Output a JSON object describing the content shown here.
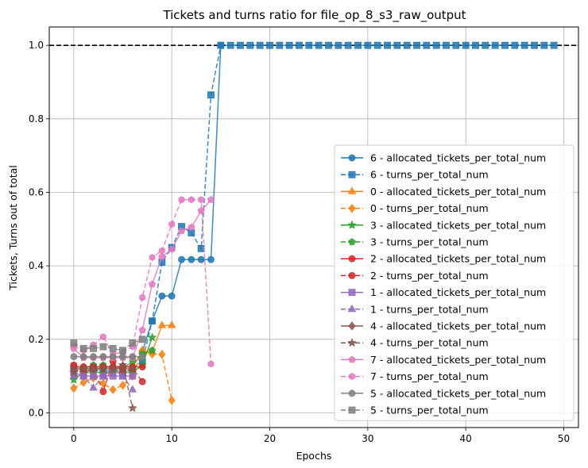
{
  "chart_data": {
    "type": "line",
    "title": "Tickets and turns ratio for file_op_8_s3_raw_output",
    "xlabel": "Epochs",
    "ylabel": "Tickets, Turns out of total",
    "xlim": [
      -2.5,
      51.5
    ],
    "ylim": [
      -0.04,
      1.05
    ],
    "xticks": [
      0,
      10,
      20,
      30,
      40,
      50
    ],
    "yticks": [
      0.0,
      0.2,
      0.4,
      0.6,
      0.8,
      1.0
    ],
    "grid": true,
    "legend_position": "lower right",
    "reference_line": {
      "y": 1.0,
      "style": "dashed",
      "color": "#000000"
    },
    "series": [
      {
        "name": "6 - allocated_tickets_per_total_num",
        "color": "#1f77b4",
        "dash": false,
        "marker": "circle",
        "x": [
          0,
          1,
          2,
          3,
          4,
          5,
          6,
          7,
          8,
          9,
          10,
          11,
          12,
          13,
          14,
          15
        ],
        "y": [
          0.125,
          0.125,
          0.125,
          0.125,
          0.125,
          0.125,
          0.125,
          0.167,
          0.25,
          0.318,
          0.318,
          0.417,
          0.417,
          0.417,
          0.417,
          1.0
        ]
      },
      {
        "name": "6 - turns_per_total_num",
        "color": "#1f77b4",
        "dash": true,
        "marker": "square",
        "x": [
          0,
          1,
          2,
          3,
          4,
          5,
          6,
          7,
          8,
          9,
          10,
          11,
          12,
          13,
          14,
          15,
          16,
          17,
          18,
          19,
          20,
          21,
          22,
          23,
          24,
          25,
          26,
          27,
          28,
          29,
          30,
          31,
          32,
          33,
          34,
          35,
          36,
          37,
          38,
          39,
          40,
          41,
          42,
          43,
          44,
          45,
          46,
          47,
          48,
          49
        ],
        "y": [
          0.12,
          0.11,
          0.12,
          0.11,
          0.12,
          0.11,
          0.12,
          0.14,
          0.25,
          0.41,
          0.45,
          0.507,
          0.49,
          0.447,
          0.865,
          1.0,
          1.0,
          1.0,
          1.0,
          1.0,
          1.0,
          1.0,
          1.0,
          1.0,
          1.0,
          1.0,
          1.0,
          1.0,
          1.0,
          1.0,
          1.0,
          1.0,
          1.0,
          1.0,
          1.0,
          1.0,
          1.0,
          1.0,
          1.0,
          1.0,
          1.0,
          1.0,
          1.0,
          1.0,
          1.0,
          1.0,
          1.0,
          1.0,
          1.0,
          1.0
        ]
      },
      {
        "name": "0 - allocated_tickets_per_total_num",
        "color": "#ff7f0e",
        "dash": false,
        "marker": "triangle-up",
        "x": [
          0,
          1,
          2,
          3,
          4,
          5,
          6,
          7,
          8,
          9,
          10
        ],
        "y": [
          0.125,
          0.125,
          0.125,
          0.125,
          0.125,
          0.125,
          0.125,
          0.167,
          0.167,
          0.238,
          0.238
        ]
      },
      {
        "name": "0 - turns_per_total_num",
        "color": "#ff7f0e",
        "dash": true,
        "marker": "diamond",
        "x": [
          0,
          1,
          2,
          3,
          4,
          5,
          6,
          7,
          8,
          9,
          10
        ],
        "y": [
          0.067,
          0.083,
          0.095,
          0.08,
          0.063,
          0.075,
          0.1,
          0.17,
          0.16,
          0.159,
          0.034
        ]
      },
      {
        "name": "3 - allocated_tickets_per_total_num",
        "color": "#2ca02c",
        "dash": false,
        "marker": "star",
        "x": [
          0,
          1,
          2,
          3,
          4,
          5,
          6,
          7,
          8
        ],
        "y": [
          0.09,
          0.11,
          0.11,
          0.11,
          0.11,
          0.11,
          0.11,
          0.13,
          0.205
        ]
      },
      {
        "name": "3 - turns_per_total_num",
        "color": "#2ca02c",
        "dash": true,
        "marker": "pentagon",
        "x": [
          0,
          1,
          2,
          3,
          4,
          5,
          6,
          7,
          8
        ],
        "y": [
          0.1,
          0.12,
          0.13,
          0.13,
          0.12,
          0.12,
          0.14,
          0.16,
          0.17
        ]
      },
      {
        "name": "2 - allocated_tickets_per_total_num",
        "color": "#d62728",
        "dash": false,
        "marker": "circle",
        "x": [
          0,
          1,
          2,
          3,
          4,
          5,
          6,
          7
        ],
        "y": [
          0.125,
          0.125,
          0.125,
          0.125,
          0.125,
          0.125,
          0.125,
          0.125
        ]
      },
      {
        "name": "2 - turns_per_total_num",
        "color": "#d62728",
        "dash": true,
        "marker": "circle",
        "x": [
          0,
          1,
          2,
          3,
          4,
          5,
          6,
          7
        ],
        "y": [
          0.13,
          0.11,
          0.12,
          0.058,
          0.14,
          0.11,
          0.12,
          0.085
        ]
      },
      {
        "name": "1 - allocated_tickets_per_total_num",
        "color": "#9467bd",
        "dash": false,
        "marker": "square",
        "x": [
          0,
          1,
          2,
          3,
          4,
          5,
          6
        ],
        "y": [
          0.11,
          0.1,
          0.1,
          0.1,
          0.1,
          0.1,
          0.1
        ]
      },
      {
        "name": "1 - turns_per_total_num",
        "color": "#9467bd",
        "dash": true,
        "marker": "triangle-up",
        "x": [
          0,
          1,
          2,
          3,
          4,
          5,
          6
        ],
        "y": [
          0.1,
          0.1,
          0.068,
          0.1,
          0.12,
          0.1,
          0.063
        ]
      },
      {
        "name": "4 - allocated_tickets_per_total_num",
        "color": "#8c564b",
        "dash": false,
        "marker": "diamond",
        "x": [
          0,
          1,
          2,
          3,
          4,
          5,
          6
        ],
        "y": [
          0.12,
          0.12,
          0.12,
          0.12,
          0.12,
          0.12,
          0.12
        ]
      },
      {
        "name": "4 - turns_per_total_num",
        "color": "#8c564b",
        "dash": true,
        "marker": "star",
        "x": [
          0,
          1,
          2,
          3,
          4,
          5,
          6
        ],
        "y": [
          0.11,
          0.12,
          0.12,
          0.12,
          0.12,
          0.13,
          0.013
        ]
      },
      {
        "name": "7 - allocated_tickets_per_total_num",
        "color": "#e377c2",
        "dash": false,
        "marker": "pentagon",
        "x": [
          0,
          1,
          2,
          3,
          4,
          5,
          6,
          7,
          8,
          9,
          10,
          11,
          12,
          13,
          14
        ],
        "y": [
          0.175,
          0.15,
          0.15,
          0.15,
          0.15,
          0.15,
          0.15,
          0.225,
          0.35,
          0.425,
          0.445,
          0.495,
          0.505,
          0.55,
          0.58
        ]
      },
      {
        "name": "7 - turns_per_total_num",
        "color": "#e377c2",
        "dash": true,
        "marker": "hexagon",
        "x": [
          0,
          1,
          2,
          3,
          4,
          5,
          6,
          7,
          8,
          9,
          10,
          11,
          12,
          13,
          14
        ],
        "y": [
          0.182,
          0.17,
          0.185,
          0.207,
          0.16,
          0.165,
          0.18,
          0.314,
          0.423,
          0.441,
          0.513,
          0.58,
          0.58,
          0.58,
          0.133
        ]
      },
      {
        "name": "5 - allocated_tickets_per_total_num",
        "color": "#7f7f7f",
        "dash": false,
        "marker": "circle",
        "x": [
          0,
          1,
          2,
          3,
          4,
          5,
          6,
          7
        ],
        "y": [
          0.153,
          0.153,
          0.153,
          0.153,
          0.153,
          0.153,
          0.153,
          0.153
        ]
      },
      {
        "name": "5 - turns_per_total_num",
        "color": "#7f7f7f",
        "dash": true,
        "marker": "square",
        "x": [
          0,
          1,
          2,
          3,
          4,
          5,
          6,
          7
        ],
        "y": [
          0.19,
          0.175,
          0.175,
          0.18,
          0.175,
          0.17,
          0.19,
          0.2
        ]
      }
    ]
  }
}
